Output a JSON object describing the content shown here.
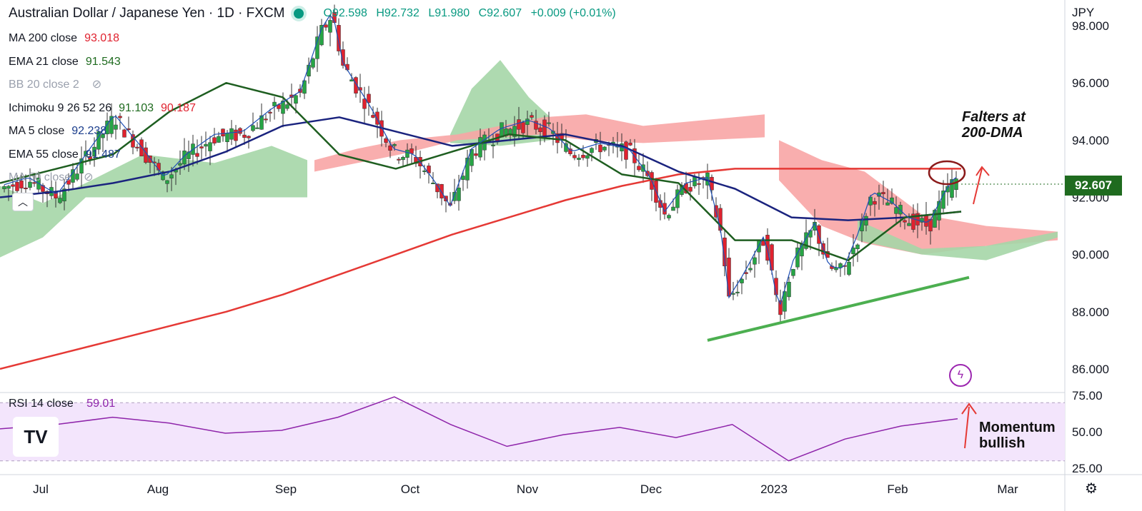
{
  "title": {
    "symbol": "Australian Dollar / Japanese Yen · 1D · FXCM",
    "open": "O92.598",
    "high": "H92.732",
    "low": "L91.980",
    "close": "C92.607",
    "change": "+0.009 (+0.01%)"
  },
  "legend": [
    {
      "label": "MA 200 close",
      "values": [
        "93.018"
      ],
      "colors": [
        "#e0222f"
      ]
    },
    {
      "label": "EMA 21 close",
      "values": [
        "91.543"
      ],
      "colors": [
        "#1f6b1f"
      ]
    },
    {
      "label": "BB 20 close 2",
      "values": [],
      "colors": [],
      "hidden": true
    },
    {
      "label": "Ichimoku 9 26 52 26",
      "values": [
        "91.103",
        "90.187"
      ],
      "colors": [
        "#1f6b1f",
        "#e0222f"
      ]
    },
    {
      "label": "MA 5 close",
      "values": [
        "92.238"
      ],
      "colors": [
        "#1a3d8c"
      ]
    },
    {
      "label": "EMA 55 close",
      "values": [
        "91.487"
      ],
      "colors": [
        "#1a3d8c"
      ]
    },
    {
      "label": "MA 50 close",
      "values": [],
      "colors": [],
      "hidden": true
    }
  ],
  "currency_label": "JPY",
  "last_price": "92.607",
  "rsi": {
    "label": "RSI 14 close",
    "value": "59.01"
  },
  "annotations": {
    "falters": "Falters at\n200-DMA",
    "momentum": "Momentum\nbullish"
  },
  "logo_text": "TV",
  "colors": {
    "up": "#26a545",
    "down": "#e0222f",
    "ma200": "#e53935",
    "ema21": "#1e5e20",
    "ema55": "#1a237e",
    "ma5": "#1e4fb5",
    "cloud_green": "#a5d6a7",
    "cloud_red": "#f8a5a5",
    "rsi": "#8e24aa",
    "rsi_band": "#f3e5fc",
    "trendline": "#4caf50",
    "circle": "#8b1a1a"
  },
  "chart_data": {
    "type": "line",
    "price_axis": {
      "ticks": [
        "98.000",
        "96.000",
        "94.000",
        "92.000",
        "90.000",
        "88.000",
        "86.000"
      ],
      "tick_values": [
        98,
        96,
        94,
        92,
        90,
        88,
        86
      ],
      "ylim": [
        85.3,
        98.9
      ]
    },
    "rsi_axis": {
      "ticks": [
        "75.00",
        "50.00",
        "25.00"
      ],
      "tick_values": [
        75,
        50,
        25
      ],
      "band": [
        30,
        70
      ]
    },
    "time_axis": {
      "labels": [
        "Jul",
        "Aug",
        "Sep",
        "Oct",
        "Nov",
        "Dec",
        "2023",
        "Feb",
        "Mar"
      ]
    },
    "series": [
      {
        "name": "MA 200 close",
        "type": "line",
        "values": [
          86.0,
          86.5,
          87.0,
          87.5,
          88.0,
          88.6,
          89.3,
          90.0,
          90.7,
          91.3,
          91.9,
          92.4,
          92.8,
          93.0,
          93.0,
          93.0,
          93.0,
          93.0
        ]
      },
      {
        "name": "EMA 55 close",
        "type": "line",
        "values": [
          92.0,
          92.2,
          92.5,
          92.9,
          93.6,
          94.5,
          94.8,
          94.3,
          93.8,
          94.0,
          94.2,
          93.8,
          92.9,
          92.3,
          91.3,
          91.2,
          91.3,
          91.5
        ]
      },
      {
        "name": "EMA 21 close",
        "type": "line",
        "values": [
          92.5,
          93.0,
          93.5,
          95.0,
          96.0,
          95.5,
          93.5,
          93.0,
          93.6,
          94.2,
          94.0,
          92.8,
          92.5,
          90.5,
          90.5,
          89.8,
          91.3,
          91.5
        ]
      },
      {
        "name": "RSI 14 close",
        "type": "line",
        "values": [
          52,
          55,
          60,
          56,
          49,
          51,
          60,
          74,
          55,
          40,
          48,
          53,
          46,
          55,
          30,
          45,
          54,
          59
        ]
      }
    ],
    "rsi_last": 59.01,
    "last_close": 92.607,
    "trendline": {
      "from": 87.0,
      "to": 89.2
    },
    "grid": false,
    "legend_position": "top-left"
  }
}
